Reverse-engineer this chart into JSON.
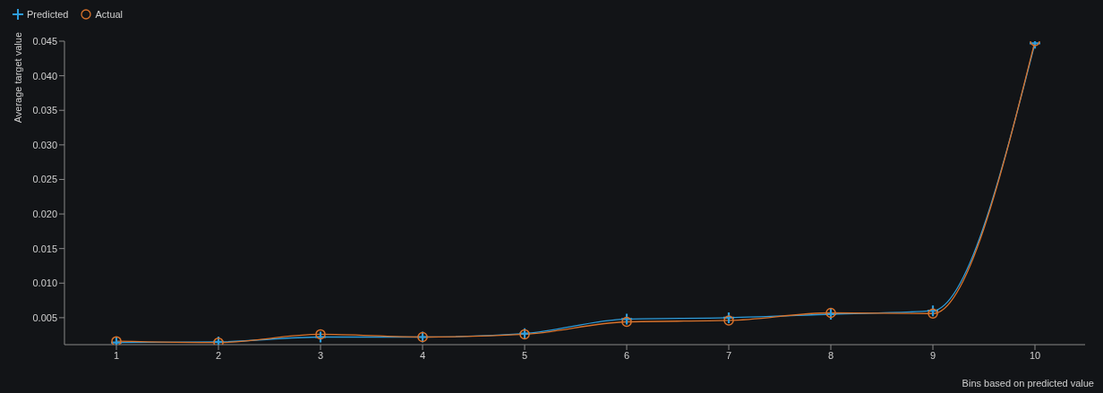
{
  "chart_data": {
    "type": "line",
    "xlabel": "Bins based on predicted value",
    "ylabel": "Average target value",
    "categories": [
      "1",
      "2",
      "3",
      "4",
      "5",
      "6",
      "7",
      "8",
      "9",
      "10"
    ],
    "series": [
      {
        "name": "Predicted",
        "color": "#2d9cdb",
        "marker": "cross",
        "values": [
          0.0014,
          0.0015,
          0.0022,
          0.0022,
          0.0027,
          0.0048,
          0.005,
          0.0055,
          0.006,
          0.0447
        ]
      },
      {
        "name": "Actual",
        "color": "#d9722b",
        "marker": "circle",
        "values": [
          0.0016,
          0.0014,
          0.0026,
          0.0022,
          0.0026,
          0.0044,
          0.0046,
          0.0057,
          0.0056,
          0.045
        ]
      }
    ],
    "ylim": [
      0.0011,
      0.045
    ],
    "yticks": [
      0.005,
      {
        "value": 0.01,
        "label": "0.010"
      },
      0.015,
      {
        "value": 0.02,
        "label": "0.020"
      },
      0.025,
      {
        "value": 0.03,
        "label": "0.030"
      },
      0.035,
      {
        "value": 0.04,
        "label": "0.040"
      },
      0.045
    ],
    "grid": false,
    "legend": "top left"
  }
}
